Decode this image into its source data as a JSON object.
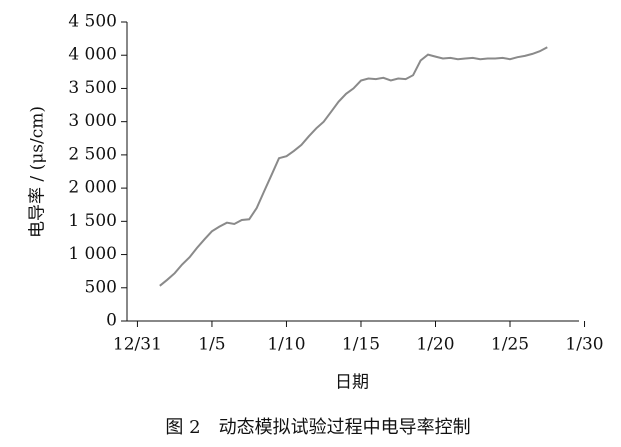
{
  "chart_data": {
    "type": "line",
    "ylabel": "电导率 / (μs/cm)",
    "xlabel": "日期",
    "caption": "图 2　动态模拟试验过程中电导率控制",
    "color": "#8a8a8a",
    "x": [
      1.5,
      2,
      2.5,
      3,
      3.5,
      4,
      4.5,
      5,
      5.5,
      6,
      6.5,
      7,
      7.5,
      8,
      8.5,
      9,
      9.5,
      10,
      10.5,
      11,
      11.5,
      12,
      12.5,
      13,
      13.5,
      14,
      14.5,
      15,
      15.5,
      16,
      16.5,
      17,
      17.5,
      18,
      18.5,
      19,
      19.5,
      20,
      20.5,
      21,
      21.5,
      22,
      22.5,
      23,
      23.5,
      24,
      24.5,
      25,
      25.5,
      26,
      26.5,
      27,
      27.5
    ],
    "values": [
      530,
      620,
      720,
      850,
      960,
      1100,
      1230,
      1350,
      1420,
      1480,
      1460,
      1520,
      1530,
      1700,
      1950,
      2200,
      2450,
      2480,
      2560,
      2650,
      2780,
      2900,
      3000,
      3150,
      3300,
      3420,
      3500,
      3620,
      3650,
      3640,
      3660,
      3620,
      3650,
      3640,
      3700,
      3920,
      4010,
      3980,
      3950,
      3960,
      3940,
      3950,
      3960,
      3940,
      3950,
      3950,
      3960,
      3940,
      3970,
      3990,
      4020,
      4060,
      4120
    ],
    "xlim": [
      -0.7,
      30.3
    ],
    "xticks": [
      {
        "value": 0,
        "label": "12/31"
      },
      {
        "value": 5,
        "label": "1/5"
      },
      {
        "value": 10,
        "label": "1/10"
      },
      {
        "value": 15,
        "label": "1/15"
      },
      {
        "value": 20,
        "label": "1/20"
      },
      {
        "value": 25,
        "label": "1/25"
      },
      {
        "value": 30,
        "label": "1/30"
      }
    ],
    "ylim": [
      0,
      4500
    ],
    "yticks": [
      0,
      500,
      {
        "value": 1000,
        "label": "1 000"
      },
      {
        "value": 1500,
        "label": "1 500"
      },
      {
        "value": 2000,
        "label": "2 000"
      },
      {
        "value": 2500,
        "label": "2 500"
      },
      {
        "value": 3000,
        "label": "3 000"
      },
      {
        "value": 3500,
        "label": "3 500"
      },
      {
        "value": 4000,
        "label": "4 000"
      },
      {
        "value": 4500,
        "label": "4 500"
      }
    ]
  }
}
